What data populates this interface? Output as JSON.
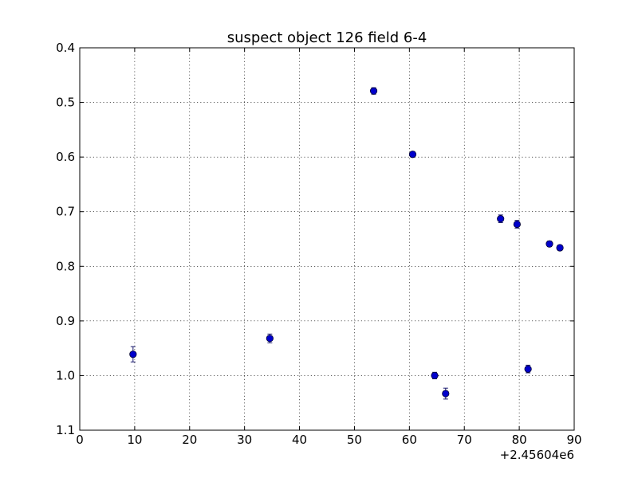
{
  "chart_data": {
    "type": "scatter",
    "title": "suspect object 126 field 6-4",
    "xlabel": "",
    "ylabel": "",
    "x_offset_label": "+2.45604e6",
    "xlim": [
      0,
      90
    ],
    "ylim": [
      0.4,
      1.1
    ],
    "y_inverted": true,
    "grid": true,
    "x_ticks": [
      0,
      10,
      20,
      30,
      40,
      50,
      60,
      70,
      80,
      90
    ],
    "y_ticks": [
      "0.4",
      "0.5",
      "0.6",
      "0.7",
      "0.8",
      "0.9",
      "1.0",
      "1.1"
    ],
    "marker_color": "#0000cc",
    "points": [
      {
        "x": 9.7,
        "y": 0.961,
        "err": 0.014
      },
      {
        "x": 34.6,
        "y": 0.932,
        "err": 0.008
      },
      {
        "x": 53.5,
        "y": 0.479,
        "err": 0.006
      },
      {
        "x": 60.6,
        "y": 0.595,
        "err": 0.005
      },
      {
        "x": 64.6,
        "y": 1.0,
        "err": 0.006
      },
      {
        "x": 66.6,
        "y": 1.033,
        "err": 0.01
      },
      {
        "x": 76.6,
        "y": 0.713,
        "err": 0.007
      },
      {
        "x": 79.6,
        "y": 0.723,
        "err": 0.007
      },
      {
        "x": 81.6,
        "y": 0.988,
        "err": 0.007
      },
      {
        "x": 85.5,
        "y": 0.759,
        "err": 0.005
      },
      {
        "x": 87.4,
        "y": 0.766,
        "err": 0.005
      }
    ]
  }
}
